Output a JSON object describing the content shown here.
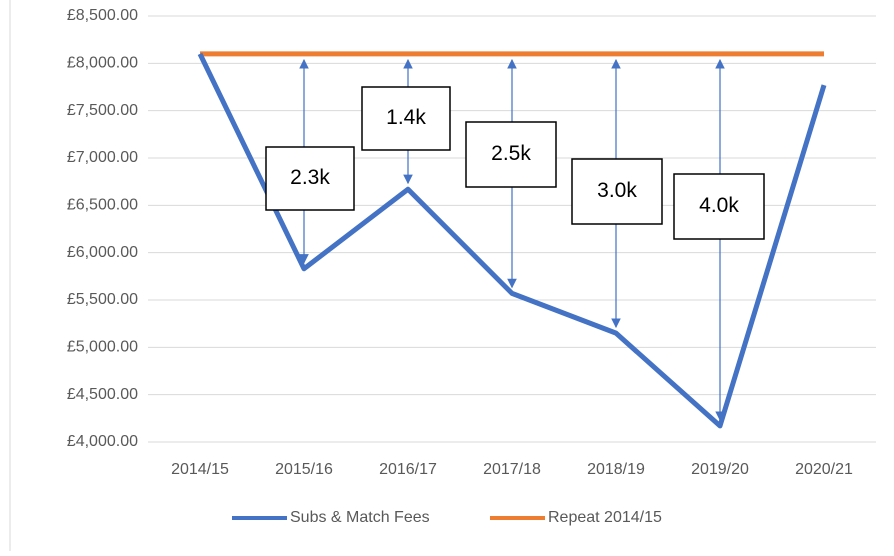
{
  "chart_data": {
    "type": "line",
    "categories": [
      "2014/15",
      "2015/16",
      "2016/17",
      "2017/18",
      "2018/19",
      "2019/20",
      "2020/21"
    ],
    "series": [
      {
        "name": "Subs & Match Fees",
        "color": "#4472c4",
        "values": [
          8100,
          5830,
          6670,
          5570,
          5150,
          4170,
          7770
        ]
      },
      {
        "name": "Repeat 2014/15",
        "color": "#ed7d31",
        "values": [
          8100,
          8100,
          8100,
          8100,
          8100,
          8100,
          8100
        ]
      }
    ],
    "ylim": [
      4000,
      8500
    ],
    "yticks": [
      {
        "value": 4000,
        "label": "£4,000.00"
      },
      {
        "value": 4500,
        "label": "£4,500.00"
      },
      {
        "value": 5000,
        "label": "£5,000.00"
      },
      {
        "value": 5500,
        "label": "£5,500.00"
      },
      {
        "value": 6000,
        "label": "£6,000.00"
      },
      {
        "value": 6500,
        "label": "£6,500.00"
      },
      {
        "value": 7000,
        "label": "£7,000.00"
      },
      {
        "value": 7500,
        "label": "£7,500.00"
      },
      {
        "value": 8000,
        "label": "£8,000.00"
      },
      {
        "value": 8500,
        "label": "£8,500.00"
      }
    ],
    "grid": true,
    "legend": "bottom",
    "annotations": [
      {
        "category": "2015/16",
        "text": "2.3k"
      },
      {
        "category": "2016/17",
        "text": "1.4k"
      },
      {
        "category": "2017/18",
        "text": "2.5k"
      },
      {
        "category": "2018/19",
        "text": "3.0k"
      },
      {
        "category": "2019/20",
        "text": "4.0k"
      }
    ]
  }
}
